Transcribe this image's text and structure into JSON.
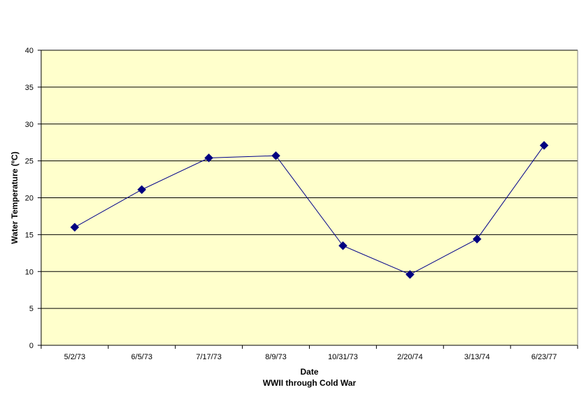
{
  "chart_data": {
    "type": "line",
    "title": "",
    "xlabel": "Date",
    "xlabel_subtitle": "WWII through Cold War",
    "ylabel": "Water Temperature (ºC)",
    "categories": [
      "5/2/73",
      "6/5/73",
      "7/17/73",
      "8/9/73",
      "10/31/73",
      "2/20/74",
      "3/13/74",
      "6/23/77"
    ],
    "series": [
      {
        "values": [
          16.0,
          21.1,
          25.4,
          25.7,
          13.5,
          9.6,
          14.4,
          27.1
        ]
      }
    ],
    "ylim": [
      0,
      40
    ],
    "yticks": [
      0,
      5,
      10,
      15,
      20,
      25,
      30,
      35,
      40
    ],
    "grid": true,
    "legend": "none",
    "colors": {
      "plot_background": "#FFFFCC",
      "line": "#00008B",
      "marker": "#000080",
      "gridline": "#000000"
    },
    "marker": "diamond"
  }
}
